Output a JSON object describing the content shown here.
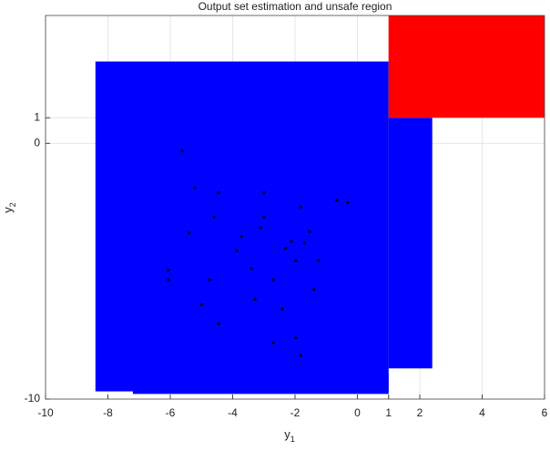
{
  "chart_data": {
    "type": "reach",
    "title": "Output set estimation and unsafe region",
    "xlabel": "y",
    "xlabel_sub": "1",
    "ylabel": "y",
    "ylabel_sub": "2",
    "xlim": [
      -10,
      6
    ],
    "ylim": [
      -10,
      5
    ],
    "xticks": [
      -10,
      -8,
      -6,
      -4,
      -2,
      0,
      1,
      2,
      4,
      6
    ],
    "yticks": [
      -10,
      0,
      1
    ],
    "grid": true,
    "boxes": [
      {
        "color": "#0000ff",
        "values": [
          -8.4,
          1,
          -9.7,
          3.2
        ]
      },
      {
        "color": "#0000ff",
        "values": [
          -7.2,
          1,
          -9.8,
          -9
        ]
      },
      {
        "color": "#0000ff",
        "values": [
          1,
          2.4,
          -8.8,
          1
        ]
      },
      {
        "color": "#ff0000",
        "values": [
          1,
          6,
          1,
          5
        ]
      }
    ],
    "points": {
      "color": "#000000",
      "x": [
        -5.62,
        -5.21,
        -4.6,
        -6.06,
        -6.06,
        -4.45,
        -2.7,
        -1.82,
        -3.72,
        -2.99,
        -1.82,
        -0.66,
        -0.31,
        -2.7,
        -2.41,
        -1.97,
        -2.12,
        -1.97,
        -1.53,
        -3.87,
        -4.74,
        -3.28,
        -1.24,
        -1.39,
        -4.45,
        -2.99,
        -5.0,
        -3.4,
        -2.3,
        -1.7,
        -5.4,
        -3.1
      ],
      "y": [
        -0.3,
        -1.74,
        -2.88,
        -4.96,
        -5.34,
        -7.05,
        -7.8,
        -8.3,
        -3.64,
        -2.88,
        -2.5,
        -2.23,
        -2.31,
        -5.34,
        -6.48,
        -7.61,
        -3.83,
        -4.58,
        -3.45,
        -4.2,
        -5.34,
        -6.1,
        -4.58,
        -5.72,
        -1.93,
        -1.93,
        -6.3,
        -4.9,
        -4.1,
        -3.9,
        -3.5,
        -3.3
      ]
    }
  }
}
